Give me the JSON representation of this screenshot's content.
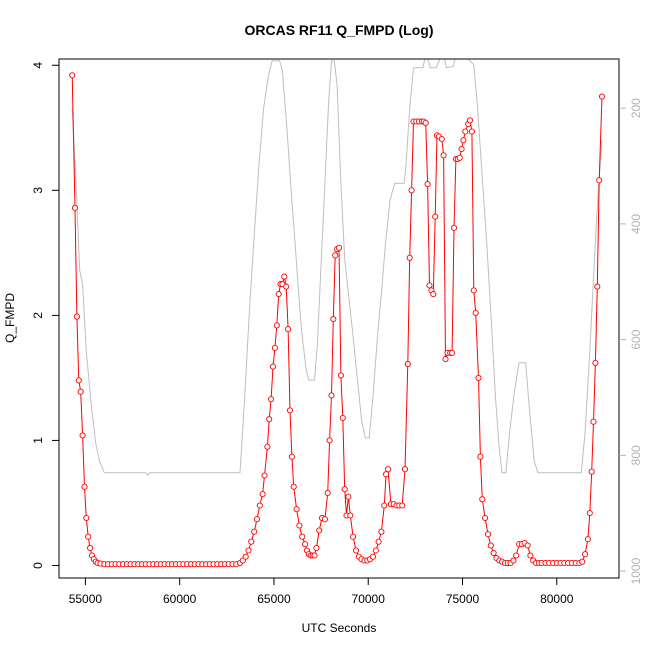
{
  "chart_data": {
    "type": "line",
    "title": "ORCAS RF11 Q_FMPD (Log)",
    "xlabel": "UTC Seconds",
    "ylabel": "Q_FMPD",
    "y2label": "",
    "xlim": [
      53600,
      83300
    ],
    "ylim": [
      -0.1,
      4.05
    ],
    "y2lim": [
      115,
      1012
    ],
    "y2_reversed": true,
    "x_ticks": [
      55000,
      60000,
      65000,
      70000,
      75000,
      80000
    ],
    "y_ticks": [
      0,
      1,
      2,
      3,
      4
    ],
    "y2_ticks": [
      200,
      400,
      600,
      800,
      1000
    ],
    "colors": {
      "series_primary": "#ff0000",
      "series_secondary": "#bebebe",
      "right_axis": "#b3b3b3"
    },
    "series": [
      {
        "axis": "left",
        "style": "line-with-open-circles",
        "points": [
          [
            54300,
            3.92
          ],
          [
            54450,
            2.86
          ],
          [
            54550,
            1.99
          ],
          [
            54650,
            1.48
          ],
          [
            54750,
            1.39
          ],
          [
            54850,
            1.04
          ],
          [
            54950,
            0.63
          ],
          [
            55050,
            0.38
          ],
          [
            55150,
            0.23
          ],
          [
            55250,
            0.14
          ],
          [
            55350,
            0.08
          ],
          [
            55450,
            0.05
          ],
          [
            55550,
            0.03
          ],
          [
            55650,
            0.02
          ],
          [
            55800,
            0.015
          ],
          [
            56000,
            0.01
          ],
          [
            56200,
            0.01
          ],
          [
            56400,
            0.01
          ],
          [
            56600,
            0.01
          ],
          [
            56800,
            0.01
          ],
          [
            57000,
            0.01
          ],
          [
            57200,
            0.01
          ],
          [
            57400,
            0.01
          ],
          [
            57600,
            0.01
          ],
          [
            57800,
            0.01
          ],
          [
            58000,
            0.01
          ],
          [
            58200,
            0.01
          ],
          [
            58400,
            0.01
          ],
          [
            58600,
            0.01
          ],
          [
            58800,
            0.01
          ],
          [
            59000,
            0.01
          ],
          [
            59200,
            0.01
          ],
          [
            59400,
            0.01
          ],
          [
            59600,
            0.01
          ],
          [
            59800,
            0.01
          ],
          [
            60000,
            0.01
          ],
          [
            60200,
            0.01
          ],
          [
            60400,
            0.01
          ],
          [
            60600,
            0.01
          ],
          [
            60800,
            0.01
          ],
          [
            61000,
            0.01
          ],
          [
            61200,
            0.01
          ],
          [
            61400,
            0.01
          ],
          [
            61600,
            0.01
          ],
          [
            61800,
            0.01
          ],
          [
            62000,
            0.01
          ],
          [
            62200,
            0.01
          ],
          [
            62400,
            0.01
          ],
          [
            62600,
            0.01
          ],
          [
            62800,
            0.01
          ],
          [
            63000,
            0.01
          ],
          [
            63200,
            0.02
          ],
          [
            63350,
            0.04
          ],
          [
            63500,
            0.07
          ],
          [
            63650,
            0.12
          ],
          [
            63800,
            0.19
          ],
          [
            63950,
            0.27
          ],
          [
            64100,
            0.37
          ],
          [
            64250,
            0.48
          ],
          [
            64400,
            0.57
          ],
          [
            64500,
            0.72
          ],
          [
            64650,
            0.95
          ],
          [
            64750,
            1.17
          ],
          [
            64850,
            1.33
          ],
          [
            64950,
            1.59
          ],
          [
            65050,
            1.74
          ],
          [
            65150,
            1.92
          ],
          [
            65250,
            2.17
          ],
          [
            65350,
            2.25
          ],
          [
            65450,
            2.25
          ],
          [
            65550,
            2.31
          ],
          [
            65650,
            2.23
          ],
          [
            65750,
            1.89
          ],
          [
            65850,
            1.24
          ],
          [
            65950,
            0.87
          ],
          [
            66050,
            0.63
          ],
          [
            66200,
            0.45
          ],
          [
            66350,
            0.32
          ],
          [
            66500,
            0.23
          ],
          [
            66650,
            0.17
          ],
          [
            66750,
            0.12
          ],
          [
            66850,
            0.09
          ],
          [
            66950,
            0.08
          ],
          [
            67050,
            0.08
          ],
          [
            67150,
            0.08
          ],
          [
            67250,
            0.14
          ],
          [
            67400,
            0.28
          ],
          [
            67550,
            0.38
          ],
          [
            67700,
            0.37
          ],
          [
            67850,
            0.58
          ],
          [
            67950,
            1.0
          ],
          [
            68050,
            1.36
          ],
          [
            68150,
            1.97
          ],
          [
            68250,
            2.48
          ],
          [
            68350,
            2.53
          ],
          [
            68450,
            2.54
          ],
          [
            68550,
            1.52
          ],
          [
            68650,
            1.18
          ],
          [
            68750,
            0.61
          ],
          [
            68850,
            0.4
          ],
          [
            68950,
            0.55
          ],
          [
            69050,
            0.4
          ],
          [
            69200,
            0.23
          ],
          [
            69350,
            0.12
          ],
          [
            69500,
            0.07
          ],
          [
            69650,
            0.05
          ],
          [
            69800,
            0.04
          ],
          [
            69950,
            0.04
          ],
          [
            70100,
            0.05
          ],
          [
            70250,
            0.07
          ],
          [
            70400,
            0.12
          ],
          [
            70550,
            0.19
          ],
          [
            70700,
            0.27
          ],
          [
            70850,
            0.48
          ],
          [
            70950,
            0.73
          ],
          [
            71050,
            0.77
          ],
          [
            71200,
            0.49
          ],
          [
            71350,
            0.49
          ],
          [
            71500,
            0.48
          ],
          [
            71650,
            0.48
          ],
          [
            71800,
            0.48
          ],
          [
            71950,
            0.77
          ],
          [
            72100,
            1.61
          ],
          [
            72200,
            2.46
          ],
          [
            72300,
            3.0
          ],
          [
            72400,
            3.55
          ],
          [
            72550,
            3.55
          ],
          [
            72700,
            3.55
          ],
          [
            72850,
            3.55
          ],
          [
            72950,
            3.55
          ],
          [
            73050,
            3.54
          ],
          [
            73150,
            3.05
          ],
          [
            73250,
            2.24
          ],
          [
            73350,
            2.2
          ],
          [
            73450,
            2.17
          ],
          [
            73550,
            2.79
          ],
          [
            73650,
            3.44
          ],
          [
            73750,
            3.43
          ],
          [
            73900,
            3.41
          ],
          [
            74000,
            3.28
          ],
          [
            74100,
            1.65
          ],
          [
            74200,
            1.7
          ],
          [
            74350,
            1.7
          ],
          [
            74450,
            1.7
          ],
          [
            74550,
            2.7
          ],
          [
            74650,
            3.25
          ],
          [
            74750,
            3.25
          ],
          [
            74850,
            3.26
          ],
          [
            74950,
            3.33
          ],
          [
            75050,
            3.4
          ],
          [
            75150,
            3.47
          ],
          [
            75300,
            3.53
          ],
          [
            75400,
            3.56
          ],
          [
            75500,
            3.47
          ],
          [
            75600,
            2.2
          ],
          [
            75700,
            2.02
          ],
          [
            75850,
            1.5
          ],
          [
            75950,
            0.87
          ],
          [
            76050,
            0.53
          ],
          [
            76200,
            0.38
          ],
          [
            76350,
            0.25
          ],
          [
            76500,
            0.16
          ],
          [
            76650,
            0.1
          ],
          [
            76800,
            0.06
          ],
          [
            76950,
            0.04
          ],
          [
            77100,
            0.03
          ],
          [
            77250,
            0.02
          ],
          [
            77400,
            0.02
          ],
          [
            77550,
            0.02
          ],
          [
            77700,
            0.04
          ],
          [
            77850,
            0.08
          ],
          [
            78000,
            0.17
          ],
          [
            78150,
            0.17
          ],
          [
            78300,
            0.18
          ],
          [
            78450,
            0.16
          ],
          [
            78600,
            0.08
          ],
          [
            78750,
            0.04
          ],
          [
            78900,
            0.02
          ],
          [
            79050,
            0.02
          ],
          [
            79200,
            0.02
          ],
          [
            79400,
            0.02
          ],
          [
            79600,
            0.02
          ],
          [
            79800,
            0.02
          ],
          [
            80000,
            0.02
          ],
          [
            80200,
            0.02
          ],
          [
            80400,
            0.02
          ],
          [
            80600,
            0.02
          ],
          [
            80800,
            0.02
          ],
          [
            81000,
            0.02
          ],
          [
            81200,
            0.02
          ],
          [
            81350,
            0.03
          ],
          [
            81500,
            0.09
          ],
          [
            81650,
            0.21
          ],
          [
            81750,
            0.42
          ],
          [
            81850,
            0.75
          ],
          [
            81950,
            1.15
          ],
          [
            82050,
            1.62
          ],
          [
            82150,
            2.23
          ],
          [
            82250,
            3.08
          ],
          [
            82400,
            3.75
          ]
        ]
      },
      {
        "axis": "right",
        "style": "line",
        "points": [
          [
            54300,
            200
          ],
          [
            54500,
            330
          ],
          [
            54700,
            480
          ],
          [
            54850,
            505
          ],
          [
            55050,
            620
          ],
          [
            55300,
            710
          ],
          [
            55550,
            780
          ],
          [
            55750,
            810
          ],
          [
            56000,
            830
          ],
          [
            56500,
            830
          ],
          [
            57500,
            830
          ],
          [
            58200,
            830
          ],
          [
            58300,
            834
          ],
          [
            58400,
            830
          ],
          [
            59000,
            830
          ],
          [
            60000,
            830
          ],
          [
            61000,
            830
          ],
          [
            62000,
            830
          ],
          [
            63000,
            830
          ],
          [
            63200,
            830
          ],
          [
            63450,
            700
          ],
          [
            63700,
            550
          ],
          [
            63950,
            420
          ],
          [
            64200,
            300
          ],
          [
            64450,
            200
          ],
          [
            64700,
            145
          ],
          [
            64900,
            118
          ],
          [
            65100,
            118
          ],
          [
            65300,
            118
          ],
          [
            65450,
            135
          ],
          [
            65700,
            240
          ],
          [
            65950,
            360
          ],
          [
            66200,
            470
          ],
          [
            66450,
            580
          ],
          [
            66700,
            650
          ],
          [
            66850,
            670
          ],
          [
            67000,
            670
          ],
          [
            67150,
            670
          ],
          [
            67300,
            610
          ],
          [
            67500,
            470
          ],
          [
            67700,
            330
          ],
          [
            67900,
            190
          ],
          [
            68050,
            118
          ],
          [
            68200,
            118
          ],
          [
            68350,
            160
          ],
          [
            68550,
            330
          ],
          [
            68750,
            460
          ],
          [
            68950,
            520
          ],
          [
            69150,
            580
          ],
          [
            69400,
            660
          ],
          [
            69650,
            740
          ],
          [
            69850,
            770
          ],
          [
            70050,
            770
          ],
          [
            70250,
            700
          ],
          [
            70500,
            590
          ],
          [
            70700,
            520
          ],
          [
            70900,
            440
          ],
          [
            71150,
            360
          ],
          [
            71400,
            330
          ],
          [
            71700,
            330
          ],
          [
            71900,
            330
          ],
          [
            72000,
            300
          ],
          [
            72200,
            200
          ],
          [
            72400,
            130
          ],
          [
            72700,
            130
          ],
          [
            72900,
            130
          ],
          [
            73000,
            115
          ],
          [
            73150,
            115
          ],
          [
            73300,
            130
          ],
          [
            73600,
            130
          ],
          [
            73800,
            115
          ],
          [
            73950,
            115
          ],
          [
            74050,
            115
          ],
          [
            74150,
            130
          ],
          [
            74500,
            128
          ],
          [
            74600,
            115
          ],
          [
            74800,
            115
          ],
          [
            75000,
            115
          ],
          [
            75300,
            115
          ],
          [
            75600,
            125
          ],
          [
            75800,
            200
          ],
          [
            76050,
            320
          ],
          [
            76300,
            440
          ],
          [
            76550,
            580
          ],
          [
            76750,
            700
          ],
          [
            76950,
            790
          ],
          [
            77100,
            830
          ],
          [
            77300,
            830
          ],
          [
            77500,
            760
          ],
          [
            77750,
            690
          ],
          [
            78000,
            640
          ],
          [
            78200,
            640
          ],
          [
            78350,
            640
          ],
          [
            78550,
            720
          ],
          [
            78800,
            810
          ],
          [
            79000,
            830
          ],
          [
            79500,
            830
          ],
          [
            80000,
            830
          ],
          [
            80500,
            830
          ],
          [
            81000,
            830
          ],
          [
            81300,
            830
          ],
          [
            81500,
            760
          ],
          [
            81750,
            620
          ],
          [
            82000,
            460
          ],
          [
            82200,
            340
          ],
          [
            82400,
            255
          ]
        ]
      }
    ]
  }
}
